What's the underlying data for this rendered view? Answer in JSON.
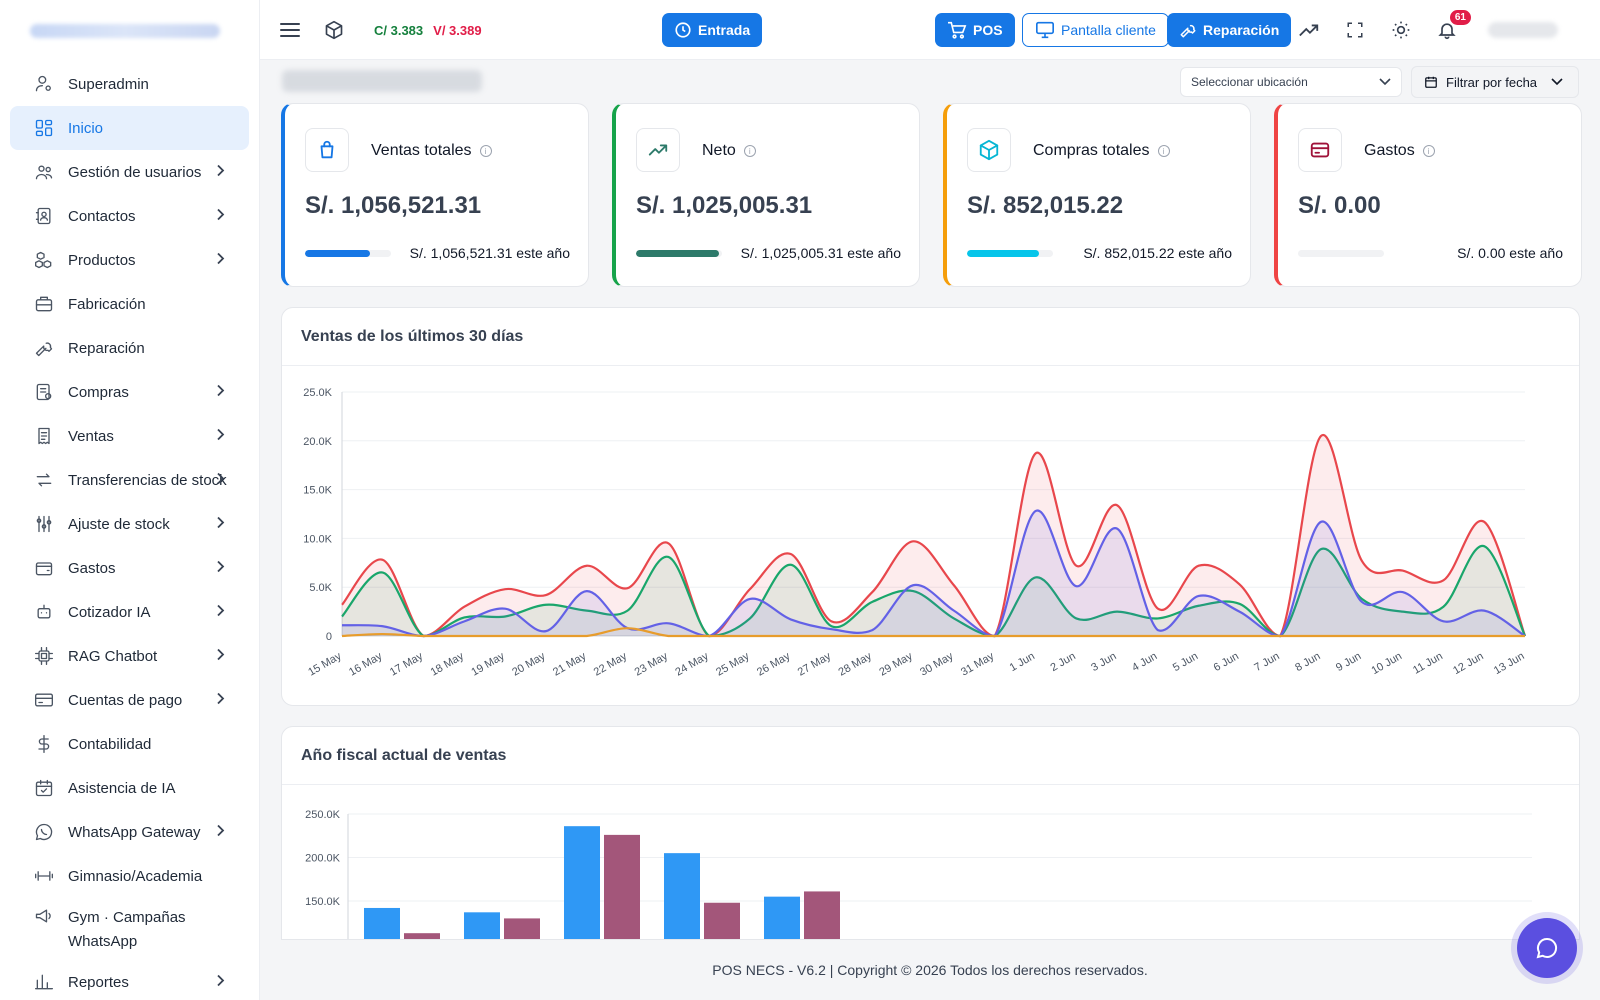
{
  "sidebar": {
    "items": [
      {
        "label": "Superadmin",
        "icon": "user-gear-icon",
        "chevron": false
      },
      {
        "label": "Inicio",
        "icon": "dashboard-icon",
        "chevron": false,
        "active": true
      },
      {
        "label": "Gestión de usuarios",
        "icon": "users-icon",
        "chevron": true
      },
      {
        "label": "Contactos",
        "icon": "address-book-icon",
        "chevron": true
      },
      {
        "label": "Productos",
        "icon": "boxes-icon",
        "chevron": true
      },
      {
        "label": "Fabricación",
        "icon": "briefcase-icon",
        "chevron": false
      },
      {
        "label": "Reparación",
        "icon": "wrench-icon",
        "chevron": false
      },
      {
        "label": "Compras",
        "icon": "purchase-icon",
        "chevron": true
      },
      {
        "label": "Ventas",
        "icon": "receipt-icon",
        "chevron": true
      },
      {
        "label": "Transferencias de stock",
        "icon": "transfer-icon",
        "chevron": true
      },
      {
        "label": "Ajuste de stock",
        "icon": "sliders-icon",
        "chevron": true
      },
      {
        "label": "Gastos",
        "icon": "wallet-icon",
        "chevron": true
      },
      {
        "label": "Cotizador IA",
        "icon": "robot-icon",
        "chevron": true
      },
      {
        "label": "RAG Chatbot",
        "icon": "chip-icon",
        "chevron": true
      },
      {
        "label": "Cuentas de pago",
        "icon": "credit-card-icon",
        "chevron": true
      },
      {
        "label": "Contabilidad",
        "icon": "dollar-icon",
        "chevron": false
      },
      {
        "label": "Asistencia de IA",
        "icon": "calendar-icon",
        "chevron": false
      },
      {
        "label": "WhatsApp Gateway",
        "icon": "whatsapp-icon",
        "chevron": true
      },
      {
        "label": "Gimnasio/Academia",
        "icon": "dumbbell-icon",
        "chevron": false
      },
      {
        "label": "Gym · Campañas WhatsApp",
        "icon": "megaphone-icon",
        "chevron": false
      },
      {
        "label": "Reportes",
        "icon": "bar-chart-icon",
        "chevron": true
      }
    ]
  },
  "topbar": {
    "rate_c": "C/ 3.383",
    "rate_v": "V/ 3.389",
    "entrada": "Entrada",
    "pos": "POS",
    "pantalla": "Pantalla cliente",
    "reparacion": "Reparación",
    "notifications": "61"
  },
  "filters": {
    "location_placeholder": "Seleccionar ubicación",
    "date_filter": "Filtrar por fecha"
  },
  "cards": [
    {
      "title": "Ventas totales",
      "value": "S/. 1,056,521.31",
      "year": "S/. 1,056,521.31 este año",
      "color": "#1677e5",
      "bar_color": "#1677e5",
      "fill": 0.75,
      "icon": "shopping-bag-icon"
    },
    {
      "title": "Neto",
      "value": "S/. 1,025,005.31",
      "year": "S/. 1,025,005.31 este año",
      "color": "#16a34a",
      "bar_color": "#2d7a6a",
      "fill": 0.97,
      "icon": "trend-up-icon"
    },
    {
      "title": "Compras totales",
      "value": "S/. 852,015.22",
      "year": "S/. 852,015.22 este año",
      "color": "#f59e0b",
      "bar_color": "#06c5ea",
      "fill": 0.84,
      "icon": "cube-icon"
    },
    {
      "title": "Gastos",
      "value": "S/. 0.00",
      "year": "S/. 0.00 este año",
      "color": "#ef4444",
      "bar_color": "#ef4444",
      "fill": 0,
      "icon": "card-icon"
    }
  ],
  "panels": {
    "last30_title": "Ventas de los últimos 30 días",
    "fiscal_title": "Año fiscal actual de ventas"
  },
  "chart_data": [
    {
      "type": "area",
      "title": "Ventas de los últimos 30 días",
      "x": [
        "15 May",
        "16 May",
        "17 May",
        "18 May",
        "19 May",
        "20 May",
        "21 May",
        "22 May",
        "23 May",
        "24 May",
        "25 May",
        "26 May",
        "27 May",
        "28 May",
        "29 May",
        "30 May",
        "31 May",
        "1 Jun",
        "2 Jun",
        "3 Jun",
        "4 Jun",
        "5 Jun",
        "6 Jun",
        "7 Jun",
        "8 Jun",
        "9 Jun",
        "10 Jun",
        "11 Jun",
        "12 Jun",
        "13 Jun"
      ],
      "ylim": [
        0,
        25000
      ],
      "yticks": [
        "0",
        "5.0K",
        "10.0K",
        "15.0K",
        "20.0K",
        "25.0K"
      ],
      "series": [
        {
          "values": [
            3200,
            7800,
            0,
            3000,
            4800,
            4200,
            7200,
            4900,
            9500,
            0,
            4800,
            8400,
            1500,
            4500,
            9700,
            5200,
            0,
            18700,
            7200,
            13400,
            2800,
            7200,
            5300,
            0,
            20500,
            7700,
            6700,
            5700,
            11700,
            0
          ],
          "color": "#e8474c",
          "fill": "rgba(232,71,76,0.10)"
        },
        {
          "values": [
            2000,
            6500,
            0,
            1900,
            2000,
            3200,
            2600,
            2600,
            8100,
            0,
            1800,
            7300,
            1000,
            3500,
            4600,
            1800,
            0,
            6000,
            1800,
            2500,
            1800,
            3100,
            3300,
            0,
            8900,
            3800,
            2500,
            3000,
            9200,
            0
          ],
          "color": "#1aa66b",
          "fill": "rgba(26,166,107,0.10)"
        },
        {
          "values": [
            1100,
            1000,
            0,
            1500,
            2800,
            500,
            4600,
            800,
            1300,
            0,
            3800,
            1700,
            700,
            600,
            5200,
            2600,
            0,
            12800,
            5100,
            11000,
            600,
            4100,
            2500,
            0,
            11700,
            3500,
            4500,
            1500,
            2600,
            0
          ],
          "color": "#6361e6",
          "fill": "rgba(99,97,230,0.12)"
        },
        {
          "values": [
            0,
            200,
            0,
            0,
            0,
            0,
            0,
            800,
            0,
            0,
            0,
            0,
            0,
            0,
            0,
            0,
            0,
            0,
            0,
            0,
            0,
            0,
            0,
            0,
            0,
            0,
            0,
            0,
            0,
            0
          ],
          "color": "#e79c2c",
          "fill": "rgba(231,156,44,0.0)"
        }
      ]
    },
    {
      "type": "bar",
      "title": "Año fiscal actual de ventas",
      "ylim": [
        0,
        250000
      ],
      "yticks": [
        "250.0K",
        "200.0K",
        "150.0K"
      ],
      "series": [
        {
          "values": [
            142000,
            137000,
            236000,
            205000,
            155000
          ],
          "color": "#2f98f5"
        },
        {
          "values": [
            113000,
            130000,
            226000,
            148000,
            161000
          ],
          "color": "#a3567a"
        }
      ]
    }
  ],
  "footer": "POS NECS - V6.2 | Copyright © 2026 Todos los derechos reservados."
}
